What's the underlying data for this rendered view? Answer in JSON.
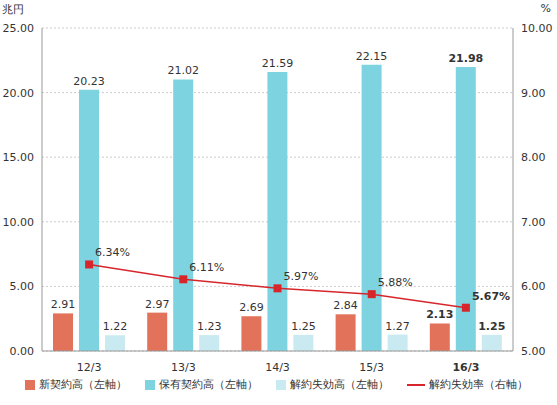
{
  "chart_data": {
    "type": "bar",
    "categories": [
      "12/3",
      "13/3",
      "14/3",
      "15/3",
      "16/3"
    ],
    "y_label": "兆円",
    "y2_label": "%",
    "series": [
      {
        "name": "新契約高（左軸）",
        "color": "#e2735a",
        "values": [
          2.91,
          2.97,
          2.69,
          2.84,
          2.13
        ]
      },
      {
        "name": "保有契約高（左軸）",
        "color": "#7ed3e0",
        "values": [
          20.23,
          21.02,
          21.59,
          22.15,
          21.98
        ]
      },
      {
        "name": "解約失効高（左軸）",
        "color": "#c8eaf0",
        "values": [
          1.22,
          1.23,
          1.25,
          1.27,
          1.25
        ]
      },
      {
        "name": "解約失効率（右軸）",
        "type": "line",
        "axis": "y2",
        "color": "#d7262b",
        "marker": "square",
        "values": [
          6.34,
          6.11,
          5.97,
          5.88,
          5.67
        ],
        "value_labels": [
          "6.34%",
          "6.11%",
          "5.97%",
          "5.88%",
          "5.67%"
        ]
      }
    ],
    "ylim": [
      0,
      25
    ],
    "yticks": [
      {
        "value": 0,
        "label": "0.00"
      },
      {
        "value": 5,
        "label": "5.00"
      },
      {
        "value": 10,
        "label": "10.00"
      },
      {
        "value": 15,
        "label": "15.00"
      },
      {
        "value": 20,
        "label": "20.00"
      },
      {
        "value": 25,
        "label": "25.00"
      }
    ],
    "y2lim": [
      5,
      10
    ],
    "y2ticks": [
      {
        "value": 5,
        "label": "5.00"
      },
      {
        "value": 6,
        "label": "6.00"
      },
      {
        "value": 7,
        "label": "7.00"
      },
      {
        "value": 8,
        "label": "8.00"
      },
      {
        "value": 9,
        "label": "9.00"
      },
      {
        "value": 10,
        "label": "10.00"
      }
    ],
    "grid": true,
    "data_labels": true,
    "legend": "bottom"
  }
}
